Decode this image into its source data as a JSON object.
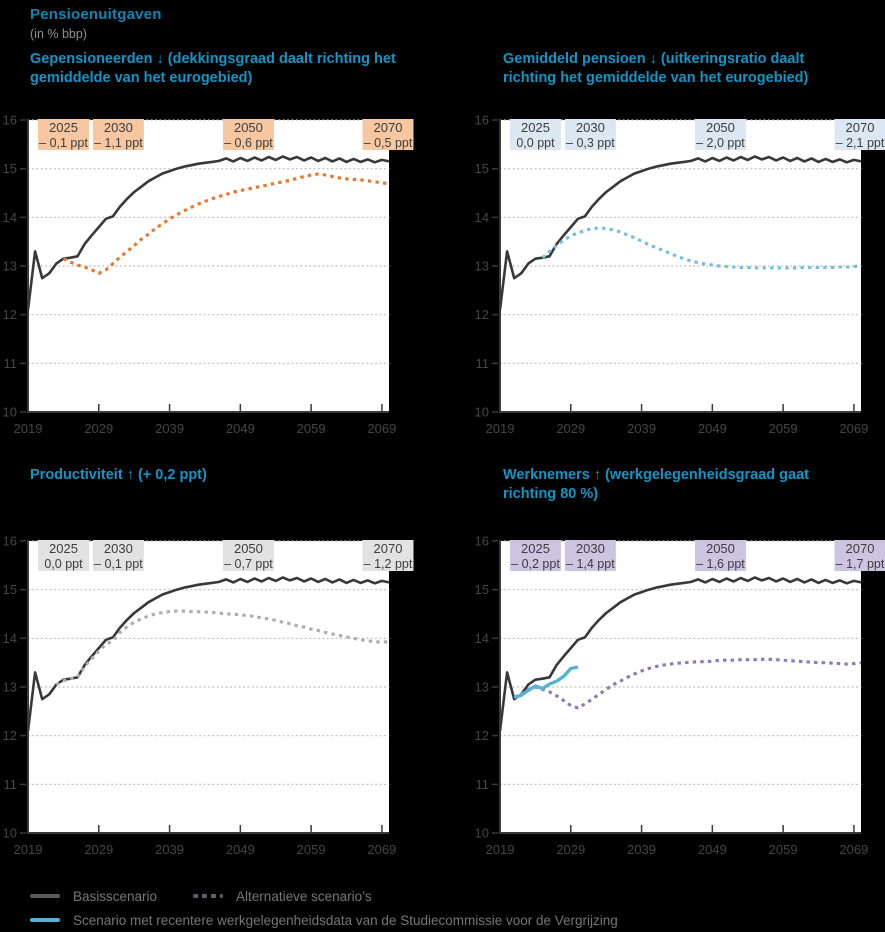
{
  "header": {
    "title": "Pensioenuitgaven",
    "subtitle": "(in % bbp)",
    "title_color": "#0b87b4",
    "subtitle_color": "#8f8f8f"
  },
  "panels": [
    {
      "id": "gepensioneerden",
      "title": "Gepensioneerden ↓ (dekkingsgraad daalt richting het gemiddelde van het eurogebied)",
      "box_color": "#f6c7a0",
      "line_color": "#e8762a",
      "annotations": [
        {
          "year": 2025,
          "value": "– 0,1 ppt"
        },
        {
          "year": 2030,
          "value": "– 1,1 ppt"
        },
        {
          "year": 2050,
          "value": "– 0,6 ppt"
        },
        {
          "year": 2070,
          "value": "– 0,5 ppt"
        }
      ],
      "alt_series_key": "gepensioneerden_alt",
      "extra_series_key": null
    },
    {
      "id": "gemiddeld-pensioen",
      "title": "Gemiddeld pensioen ↓ (uitkeringsratio daalt richting het gemiddelde van het eurogebied)",
      "box_color": "#dbe7f2",
      "line_color": "#74c0da",
      "annotations": [
        {
          "year": 2025,
          "value": "0,0 ppt"
        },
        {
          "year": 2030,
          "value": "– 0,3 ppt"
        },
        {
          "year": 2050,
          "value": "– 2,0 ppt"
        },
        {
          "year": 2070,
          "value": "– 2,1 ppt"
        }
      ],
      "alt_series_key": "gemiddeld_pensioen_alt",
      "extra_series_key": null
    },
    {
      "id": "productiviteit",
      "title": "Productiviteit ↑ (+ 0,2 ppt)",
      "box_color": "#e2e2e2",
      "line_color": "#adadad",
      "annotations": [
        {
          "year": 2025,
          "value": "0,0 ppt"
        },
        {
          "year": 2030,
          "value": "– 0,1 ppt"
        },
        {
          "year": 2050,
          "value": "– 0,7 ppt"
        },
        {
          "year": 2070,
          "value": "– 1,2 ppt"
        }
      ],
      "alt_series_key": "productiviteit_alt",
      "extra_series_key": null
    },
    {
      "id": "werknemers",
      "title": "Werknemers ↑ (werkgelegenheidsgraad gaat richting 80 %)",
      "box_color": "#cdc4e1",
      "line_color": "#8b79b5",
      "annotations": [
        {
          "year": 2025,
          "value": "– 0,2 ppt"
        },
        {
          "year": 2030,
          "value": "– 1,4 ppt"
        },
        {
          "year": 2050,
          "value": "– 1,6 ppt"
        },
        {
          "year": 2070,
          "value": "– 1,7 ppt"
        }
      ],
      "alt_series_key": "werknemers_alt",
      "extra_series_key": "scvv"
    }
  ],
  "legend": {
    "items": [
      {
        "label": "Basisscenario",
        "style": "solid",
        "color": "#565b61"
      },
      {
        "label": "Alternatieve scenario’s",
        "style": "dotted",
        "color": "#5d6267"
      },
      {
        "label": "Scenario met recentere werkgelegenheidsdata van de Studiecommissie voor de Vergrijzing",
        "style": "solid",
        "color": "#56b3d3"
      }
    ],
    "text_color": "#767676"
  },
  "chart_data": {
    "type": "line",
    "title": "Pensioenuitgaven (in % bbp)",
    "ylim": [
      10,
      16
    ],
    "yticks": [
      10,
      11,
      12,
      13,
      14,
      15,
      16
    ],
    "xticks": [
      2019,
      2029,
      2039,
      2049,
      2059,
      2069
    ],
    "x_range": [
      2019,
      2070
    ],
    "grid": "dotted-horizontal",
    "plot_bg": "#ffffff",
    "axis_color": "#3a3a3a",
    "tick_label_color": "#454545",
    "grid_color": "#bdbdbd",
    "annotation_text_color": "#3d3d3d",
    "basis_color": "#383838",
    "scvv_color": "#56b3d3",
    "series": {
      "basis": {
        "name": "Basisscenario",
        "start_year": 2019,
        "values": [
          12.1,
          13.3,
          12.75,
          12.85,
          13.05,
          13.15,
          13.17,
          13.2,
          13.45,
          13.63,
          13.8,
          13.97,
          14.02,
          14.22,
          14.38,
          14.52,
          14.63,
          14.74,
          14.82,
          14.9,
          14.95,
          15.0,
          15.04,
          15.07,
          15.1,
          15.12,
          15.14,
          15.16,
          15.21,
          15.15,
          15.22,
          15.16,
          15.23,
          15.17,
          15.24,
          15.18,
          15.25,
          15.19,
          15.24,
          15.17,
          15.23,
          15.16,
          15.22,
          15.15,
          15.21,
          15.14,
          15.2,
          15.14,
          15.19,
          15.13,
          15.18,
          15.15
        ]
      },
      "gepensioneerden_alt": {
        "name": "Alternatief scenario: gepensioneerden",
        "start_year": 2024,
        "values": [
          13.15,
          13.08,
          13.02,
          12.98,
          12.92,
          12.85,
          12.92,
          13.05,
          13.18,
          13.3,
          13.42,
          13.55,
          13.65,
          13.77,
          13.87,
          13.97,
          14.05,
          14.13,
          14.2,
          14.27,
          14.33,
          14.38,
          14.43,
          14.47,
          14.52,
          14.55,
          14.58,
          14.61,
          14.64,
          14.67,
          14.7,
          14.73,
          14.76,
          14.8,
          14.84,
          14.87,
          14.89,
          14.87,
          14.84,
          14.81,
          14.79,
          14.78,
          14.77,
          14.75,
          14.73,
          14.71,
          14.69
        ]
      },
      "gemiddeld_pensioen_alt": {
        "name": "Alternatief scenario: gemiddeld pensioen",
        "start_year": 2025,
        "values": [
          13.17,
          13.3,
          13.42,
          13.53,
          13.62,
          13.68,
          13.73,
          13.77,
          13.78,
          13.77,
          13.74,
          13.7,
          13.64,
          13.58,
          13.51,
          13.44,
          13.38,
          13.32,
          13.26,
          13.2,
          13.15,
          13.1,
          13.07,
          13.04,
          13.02,
          13.0,
          12.99,
          12.98,
          12.97,
          12.97,
          12.96,
          12.96,
          12.96,
          12.96,
          12.96,
          12.96,
          12.96,
          12.97,
          12.97,
          12.97,
          12.97,
          12.97,
          12.98,
          12.98,
          12.99,
          13.0
        ]
      },
      "productiviteit_alt": {
        "name": "Alternatief scenario: productiviteit",
        "start_year": 2023,
        "values": [
          13.05,
          13.13,
          13.17,
          13.2,
          13.42,
          13.58,
          13.74,
          13.88,
          13.95,
          14.12,
          14.24,
          14.33,
          14.4,
          14.46,
          14.5,
          14.53,
          14.55,
          14.56,
          14.56,
          14.55,
          14.55,
          14.54,
          14.53,
          14.52,
          14.5,
          14.5,
          14.48,
          14.47,
          14.45,
          14.42,
          14.4,
          14.37,
          14.33,
          14.3,
          14.26,
          14.23,
          14.19,
          14.16,
          14.12,
          14.09,
          14.06,
          14.03,
          14.0,
          13.97,
          13.95,
          13.93,
          13.92,
          13.93
        ]
      },
      "werknemers_alt": {
        "name": "Alternatief scenario: werknemers",
        "start_year": 2021,
        "values": [
          12.78,
          12.85,
          12.95,
          13.0,
          12.95,
          12.9,
          12.82,
          12.72,
          12.62,
          12.57,
          12.65,
          12.75,
          12.85,
          12.95,
          13.05,
          13.12,
          13.2,
          13.27,
          13.33,
          13.38,
          13.42,
          13.45,
          13.47,
          13.49,
          13.5,
          13.51,
          13.52,
          13.52,
          13.53,
          13.55,
          13.55,
          13.55,
          13.56,
          13.56,
          13.56,
          13.57,
          13.57,
          13.56,
          13.55,
          13.54,
          13.53,
          13.52,
          13.51,
          13.5,
          13.5,
          13.49,
          13.48,
          13.47,
          13.48,
          13.5
        ]
      },
      "scvv": {
        "name": "Scenario met recentere werkgelegenheidsdata van de Studiecommissie voor de Vergrijzing",
        "start_year": 2021,
        "values": [
          12.79,
          12.83,
          12.93,
          13.02,
          12.97,
          13.06,
          13.12,
          13.22,
          13.38,
          13.41
        ]
      }
    }
  }
}
